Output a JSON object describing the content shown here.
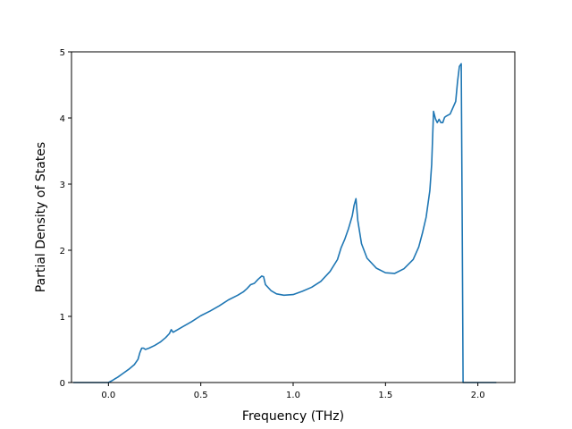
{
  "chart_data": {
    "type": "line",
    "title": "",
    "xlabel": "Frequency (THz)",
    "ylabel": "Partial Density of States",
    "xlim": [
      -0.2,
      2.2
    ],
    "ylim": [
      0,
      5
    ],
    "grid": false,
    "line_color": "#1f77b4",
    "x_ticks": [
      0.0,
      0.5,
      1.0,
      1.5,
      2.0
    ],
    "x_tick_labels": [
      "0.0",
      "0.5",
      "1.0",
      "1.5",
      "2.0"
    ],
    "y_ticks": [
      0,
      1,
      2,
      3,
      4,
      5
    ],
    "y_tick_labels": [
      "0",
      "1",
      "2",
      "3",
      "4",
      "5"
    ],
    "series": [
      {
        "x": [
          -0.19,
          -0.1,
          0.0,
          0.02,
          0.05,
          0.08,
          0.11,
          0.14,
          0.16,
          0.17,
          0.18,
          0.19,
          0.2,
          0.22,
          0.25,
          0.28,
          0.31,
          0.33,
          0.34,
          0.35,
          0.4,
          0.45,
          0.5,
          0.55,
          0.6,
          0.65,
          0.7,
          0.73,
          0.75,
          0.77,
          0.79,
          0.81,
          0.83,
          0.84,
          0.85,
          0.88,
          0.91,
          0.95,
          1.0,
          1.05,
          1.1,
          1.15,
          1.2,
          1.24,
          1.26,
          1.28,
          1.3,
          1.32,
          1.33,
          1.34,
          1.35,
          1.37,
          1.4,
          1.45,
          1.5,
          1.55,
          1.6,
          1.65,
          1.68,
          1.7,
          1.72,
          1.74,
          1.75,
          1.76,
          1.77,
          1.78,
          1.79,
          1.8,
          1.81,
          1.82,
          1.83,
          1.85,
          1.88,
          1.89,
          1.9,
          1.91,
          1.915,
          1.92,
          2.0,
          2.1
        ],
        "y": [
          0.0,
          0.0,
          0.0,
          0.03,
          0.08,
          0.14,
          0.2,
          0.27,
          0.35,
          0.45,
          0.52,
          0.52,
          0.5,
          0.52,
          0.56,
          0.61,
          0.68,
          0.74,
          0.8,
          0.76,
          0.84,
          0.92,
          1.01,
          1.08,
          1.16,
          1.25,
          1.32,
          1.37,
          1.42,
          1.48,
          1.5,
          1.56,
          1.61,
          1.6,
          1.48,
          1.39,
          1.34,
          1.32,
          1.33,
          1.38,
          1.44,
          1.53,
          1.68,
          1.86,
          2.04,
          2.17,
          2.33,
          2.52,
          2.68,
          2.78,
          2.45,
          2.1,
          1.88,
          1.73,
          1.66,
          1.65,
          1.72,
          1.86,
          2.05,
          2.26,
          2.5,
          2.9,
          3.3,
          4.1,
          3.99,
          3.93,
          3.98,
          3.93,
          3.93,
          4.01,
          4.03,
          4.06,
          4.25,
          4.55,
          4.78,
          4.82,
          2.5,
          0.0,
          0.0,
          0.0
        ]
      }
    ]
  }
}
